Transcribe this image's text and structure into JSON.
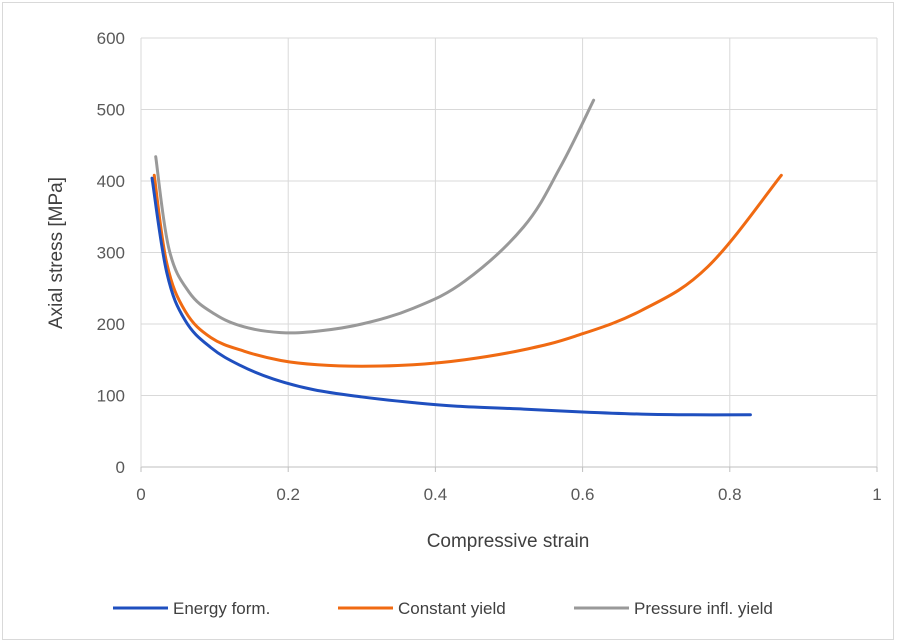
{
  "chart_data": {
    "type": "line",
    "title": "",
    "xlabel": "Compressive strain",
    "ylabel": "Axial stress [MPa]",
    "xlim": [
      0,
      1
    ],
    "ylim": [
      0,
      600
    ],
    "xticks": [
      0,
      0.2,
      0.4,
      0.6,
      0.8,
      1
    ],
    "xtick_labels": [
      "0",
      "0.2",
      "0.4",
      "0.6",
      "0.8",
      "1"
    ],
    "yticks": [
      0,
      100,
      200,
      300,
      400,
      500,
      600
    ],
    "ytick_labels": [
      "0",
      "100",
      "200",
      "300",
      "400",
      "500",
      "600"
    ],
    "grid": true,
    "legend_position": "bottom",
    "series": [
      {
        "name": "Energy form.",
        "color": "#1f4fbf",
        "points": [
          [
            0.015,
            404
          ],
          [
            0.035,
            272
          ],
          [
            0.06,
            205
          ],
          [
            0.095,
            167
          ],
          [
            0.135,
            142
          ],
          [
            0.18,
            123
          ],
          [
            0.235,
            108
          ],
          [
            0.3,
            98
          ],
          [
            0.37,
            90
          ],
          [
            0.43,
            85
          ],
          [
            0.52,
            81
          ],
          [
            0.6,
            77
          ],
          [
            0.68,
            74
          ],
          [
            0.75,
            73
          ],
          [
            0.828,
            73
          ]
        ]
      },
      {
        "name": "Constant yield",
        "color": "#f06a12",
        "points": [
          [
            0.018,
            408
          ],
          [
            0.035,
            285
          ],
          [
            0.06,
            218
          ],
          [
            0.095,
            181
          ],
          [
            0.14,
            162
          ],
          [
            0.19,
            149
          ],
          [
            0.24,
            143
          ],
          [
            0.3,
            141
          ],
          [
            0.37,
            143
          ],
          [
            0.44,
            150
          ],
          [
            0.52,
            164
          ],
          [
            0.59,
            183
          ],
          [
            0.68,
            219
          ],
          [
            0.77,
            280
          ],
          [
            0.87,
            408
          ]
        ]
      },
      {
        "name": "Pressure infl. yield",
        "color": "#999999",
        "points": [
          [
            0.02,
            434
          ],
          [
            0.038,
            305
          ],
          [
            0.065,
            245
          ],
          [
            0.1,
            214
          ],
          [
            0.14,
            196
          ],
          [
            0.19,
            188
          ],
          [
            0.24,
            190
          ],
          [
            0.3,
            200
          ],
          [
            0.37,
            222
          ],
          [
            0.44,
            260
          ],
          [
            0.52,
            336
          ],
          [
            0.57,
            420
          ],
          [
            0.615,
            513
          ]
        ]
      }
    ]
  }
}
